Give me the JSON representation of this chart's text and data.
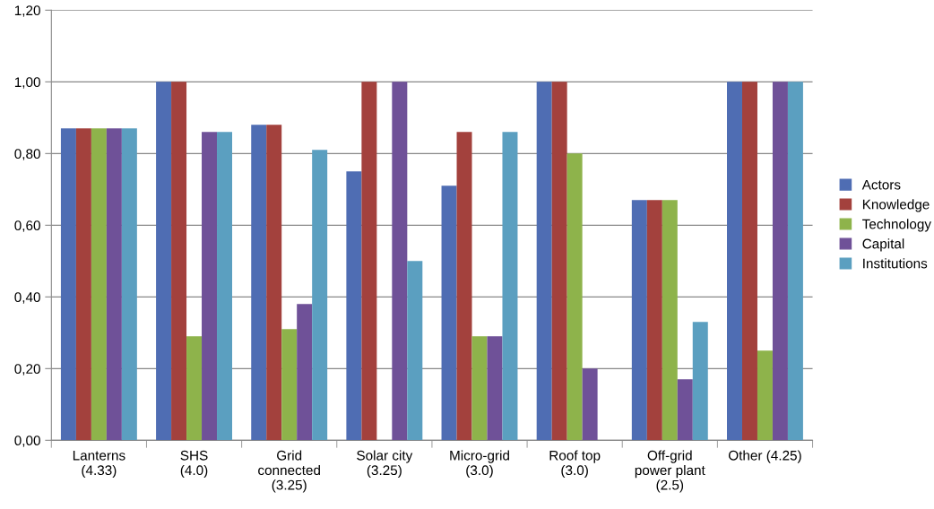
{
  "chart_data": {
    "type": "bar",
    "categories": [
      "Lanterns\n(4.33)",
      "SHS\n(4.0)",
      "Grid\nconnected\n(3.25)",
      "Solar city\n(3.25)",
      "Micro-grid\n(3.0)",
      "Roof top\n(3.0)",
      "Off-grid\npower plant\n(2.5)",
      "Other (4.25)"
    ],
    "series": [
      {
        "name": "Actors",
        "color": "#4f6db3",
        "values": [
          0.87,
          1.0,
          0.88,
          0.75,
          0.71,
          1.0,
          0.67,
          1.0
        ]
      },
      {
        "name": "Knowledge",
        "color": "#a3413d",
        "values": [
          0.87,
          1.0,
          0.88,
          1.0,
          0.86,
          1.0,
          0.67,
          1.0
        ]
      },
      {
        "name": "Technology",
        "color": "#8eb34b",
        "values": [
          0.87,
          0.29,
          0.31,
          0,
          0.29,
          0.8,
          0.67,
          0.25
        ]
      },
      {
        "name": "Capital",
        "color": "#6f5198",
        "values": [
          0.87,
          0.86,
          0.38,
          1.0,
          0.29,
          0.2,
          0.17,
          1.0
        ]
      },
      {
        "name": "Institutions",
        "color": "#5b9fc0",
        "values": [
          0.87,
          0.86,
          0.81,
          0.5,
          0.86,
          0,
          0.33,
          1.0
        ]
      }
    ],
    "ylim": [
      0,
      1.2
    ],
    "yticks": [
      {
        "value": 0,
        "label": "0,00"
      },
      {
        "value": 0.2,
        "label": "0,20"
      },
      {
        "value": 0.4,
        "label": "0,40"
      },
      {
        "value": 0.6,
        "label": "0,60"
      },
      {
        "value": 0.8,
        "label": "0,80"
      },
      {
        "value": 1.0,
        "label": "1,00"
      },
      {
        "value": 1.2,
        "label": "1,20"
      }
    ],
    "grid": "y",
    "legend": "right"
  }
}
